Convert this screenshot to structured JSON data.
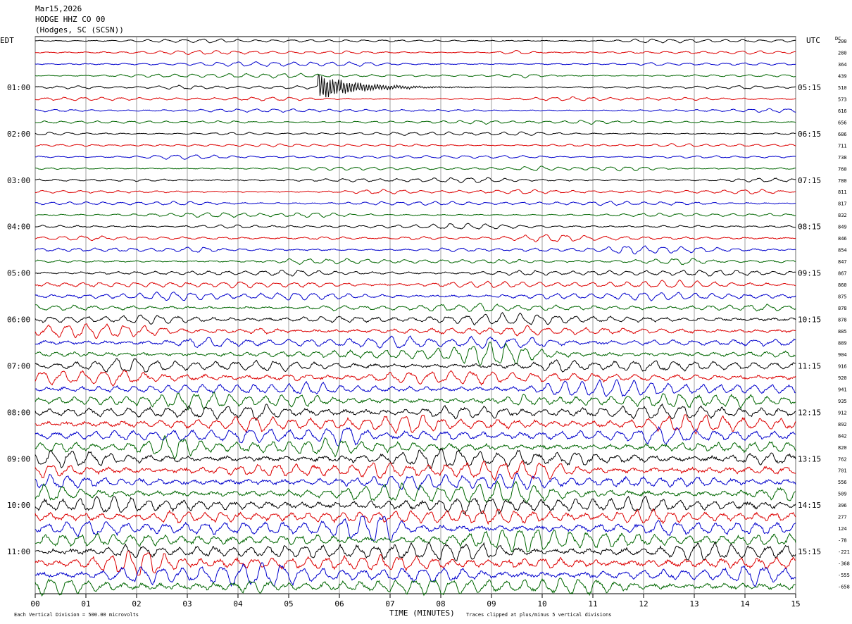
{
  "header": {
    "date": "Mar15,2026",
    "station": "HODGE HHZ CO 00",
    "location": "(Hodges, SC (SCSN))"
  },
  "left_zone_label": "EDT",
  "right_zone_label": "UTC",
  "dc_label": "DC",
  "footer": {
    "scale_note": "Each Vertical Division =  500.00 microvolts",
    "xlabel": "TIME (MINUTES)",
    "clip_note": "Traces clipped at plus/minus 5 vertical divisions"
  },
  "colors": {
    "trace_cycle": [
      "#000000",
      "#dd0000",
      "#0000cc",
      "#006600"
    ],
    "grid": "#888888"
  },
  "chart_data": {
    "type": "line",
    "description_of_series": "helicorder: 48 traces of 15 minutes each",
    "x_ticks": [
      "00",
      "01",
      "02",
      "03",
      "04",
      "05",
      "06",
      "07",
      "08",
      "09",
      "10",
      "11",
      "12",
      "13",
      "14",
      "15"
    ],
    "xlim": [
      0,
      15
    ],
    "left_hour_labels": [
      "01:00",
      "02:00",
      "03:00",
      "04:00",
      "05:00",
      "06:00",
      "07:00",
      "08:00",
      "09:00",
      "10:00",
      "11:00"
    ],
    "right_hour_labels": [
      "05:15",
      "06:15",
      "07:15",
      "08:15",
      "09:15",
      "10:15",
      "11:15",
      "12:15",
      "13:15",
      "14:15",
      "15:15"
    ],
    "hour_label_trace_start_index": 4,
    "dc_values": [
      200,
      280,
      364,
      439,
      510,
      573,
      616,
      656,
      686,
      711,
      738,
      760,
      780,
      811,
      817,
      832,
      849,
      846,
      854,
      847,
      867,
      860,
      875,
      878,
      878,
      885,
      889,
      904,
      916,
      920,
      941,
      935,
      912,
      892,
      842,
      820,
      762,
      701,
      556,
      509,
      396,
      277,
      124,
      -78,
      -221,
      -368,
      -555,
      -658
    ],
    "trace_amplitude_divisions": [
      0.6,
      0.6,
      0.6,
      0.6,
      0.6,
      0.6,
      0.6,
      0.6,
      0.6,
      0.6,
      0.6,
      0.6,
      0.7,
      0.7,
      0.7,
      0.7,
      0.8,
      0.8,
      0.9,
      0.9,
      1.0,
      1.2,
      1.3,
      1.4,
      1.6,
      1.7,
      1.9,
      2.0,
      2.1,
      2.2,
      2.3,
      2.4,
      2.5,
      2.6,
      2.6,
      2.7,
      2.8,
      2.8,
      2.9,
      2.9,
      3.0,
      3.0,
      3.0,
      3.0,
      3.1,
      3.1,
      3.1,
      3.1
    ],
    "event": {
      "trace_index": 4,
      "start_minute": 5.58,
      "peak_divisions": 5
    }
  }
}
